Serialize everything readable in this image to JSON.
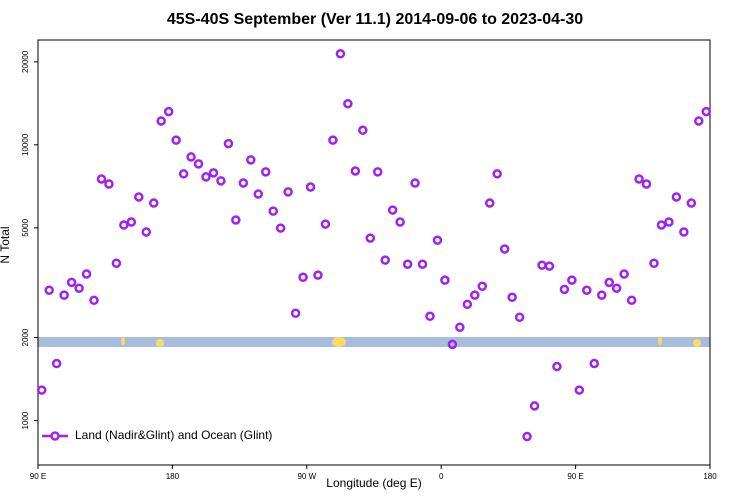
{
  "chart_data": {
    "type": "scatter",
    "title": "45S-40S September (Ver 11.1)   2014-09-06 to 2023-04-30",
    "xlabel": "Longitude (deg E)",
    "ylabel": "N Total",
    "xlim": [
      90,
      540
    ],
    "ylim": [
      690,
      24000
    ],
    "log_y": true,
    "legend": "lower left",
    "xticks": [
      {
        "value": 90,
        "label": "90 E"
      },
      180,
      {
        "value": 270,
        "label": "90 W"
      },
      {
        "value": 360,
        "label": "0"
      },
      {
        "value": 450,
        "label": "90 E"
      },
      {
        "value": 540,
        "label": "180"
      }
    ],
    "yticks": [
      1000,
      2000,
      5000,
      10000,
      20000
    ],
    "x": [
      92.5,
      97.5,
      102.5,
      107.5,
      112.5,
      117.5,
      122.5,
      127.5,
      132.5,
      137.5,
      142.5,
      147.5,
      152.5,
      157.5,
      162.5,
      167.5,
      172.5,
      177.5,
      182.5,
      187.5,
      192.5,
      197.5,
      202.5,
      207.5,
      212.5,
      217.5,
      222.5,
      227.5,
      232.5,
      237.5,
      242.5,
      247.5,
      252.5,
      257.5,
      262.5,
      267.5,
      272.5,
      277.5,
      282.5,
      287.5,
      292.5,
      297.5,
      302.5,
      307.5,
      312.5,
      317.5,
      322.5,
      327.5,
      332.5,
      337.5,
      342.5,
      347.5,
      352.5,
      357.5,
      362.5,
      367.5,
      372.5,
      377.5,
      382.5,
      387.5,
      392.5,
      397.5,
      402.5,
      407.5,
      412.5,
      417.5,
      422.5,
      427.5,
      432.5,
      437.5,
      442.5,
      447.5,
      452.5,
      457.5,
      462.5,
      467.5,
      472.5,
      477.5,
      482.5,
      487.5,
      492.5,
      497.5,
      502.5,
      507.5,
      512.5,
      517.5,
      522.5,
      527.5,
      532.5,
      537.5
    ],
    "series": [
      {
        "name": "Land (Nadir&Glint) and Ocean (Glint)",
        "color": "#a020f0",
        "values": [
          1290,
          2970,
          1610,
          2850,
          3170,
          3020,
          3400,
          2730,
          7520,
          7210,
          3720,
          5120,
          5250,
          6470,
          4830,
          6150,
          12200,
          13200,
          10400,
          7850,
          9040,
          8530,
          7650,
          7910,
          7400,
          10100,
          5340,
          7270,
          8820,
          6630,
          7980,
          5750,
          4990,
          6750,
          2450,
          3310,
          7030,
          3370,
          5160,
          10400,
          21400,
          14100,
          8040,
          11300,
          4590,
          7980,
          3820,
          5800,
          5250,
          3690,
          7270,
          3690,
          2390,
          4510,
          3230,
          1890,
          2180,
          2640,
          2850,
          3070,
          6150,
          7850,
          4190,
          2800,
          2370,
          875,
          1130,
          3660,
          3630,
          1570,
          2990,
          3230,
          1290,
          2970,
          1610,
          2850,
          3170,
          3020,
          3400,
          2730,
          7520,
          7210,
          3720,
          5120,
          5250,
          6470,
          4830,
          6150,
          12200,
          13200
        ]
      }
    ]
  }
}
